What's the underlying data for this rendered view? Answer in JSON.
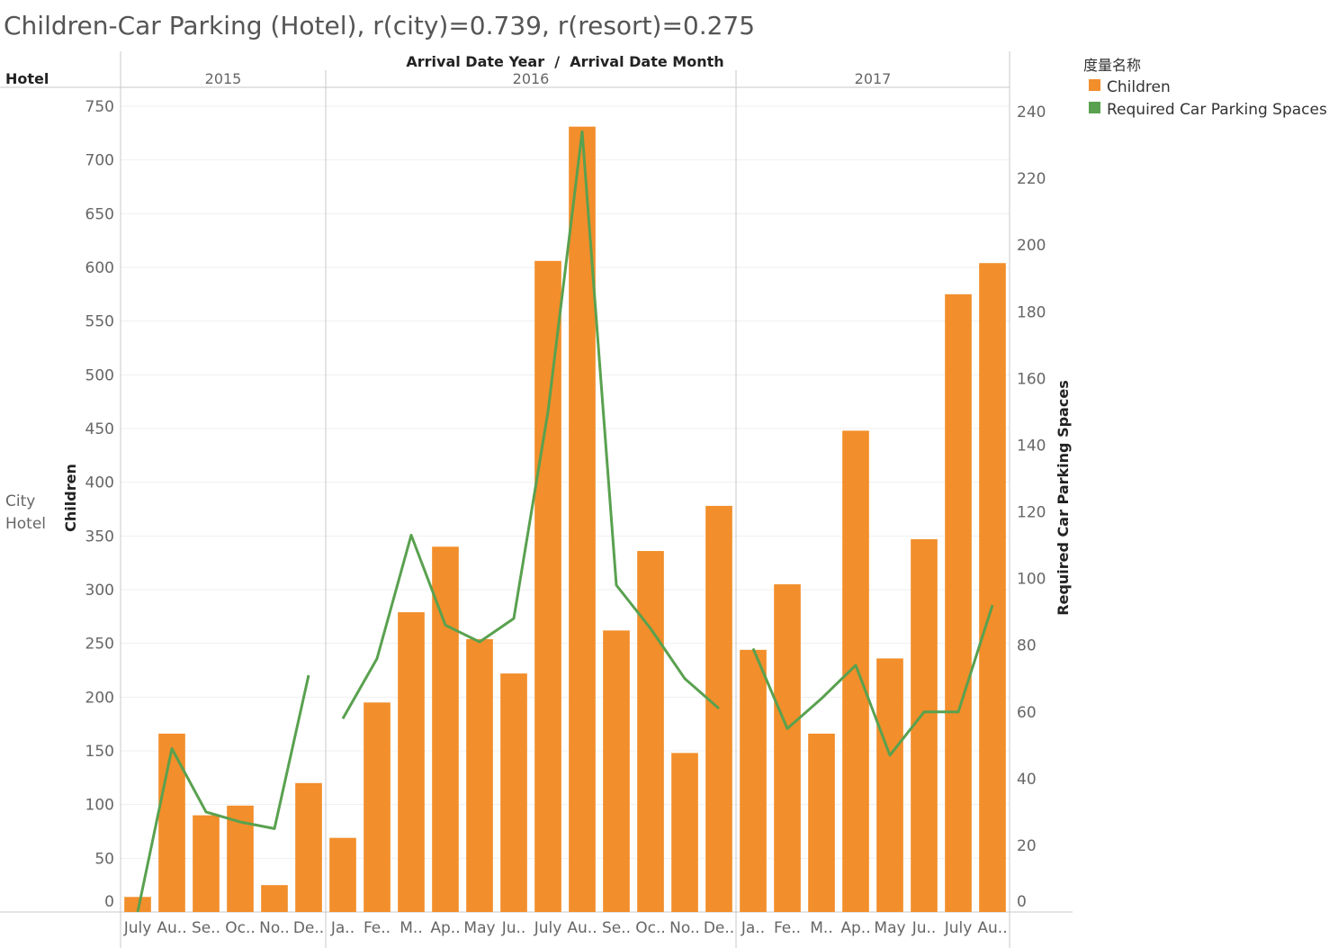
{
  "title": "Children-Car Parking (Hotel), r(city)=0.739, r(resort)=0.275",
  "header": {
    "corner_label": "Hotel",
    "column_header": "Arrival Date Year  /  Arrival Date Month",
    "years": [
      "2015",
      "2016",
      "2017"
    ]
  },
  "row_label_line1": "City",
  "row_label_line2": "Hotel",
  "legend": {
    "title": "度量名称",
    "items": [
      {
        "label": "Children",
        "color": "#f28e2b"
      },
      {
        "label": "Required Car Parking Spaces",
        "color": "#59a14f"
      }
    ]
  },
  "chart_data": {
    "type": "bar",
    "categories": [
      "July",
      "Au..",
      "Se..",
      "Oc..",
      "No..",
      "De..",
      "Ja..",
      "Fe..",
      "M..",
      "Ap..",
      "May",
      "Ju..",
      "July",
      "Au..",
      "Se..",
      "Oc..",
      "No..",
      "De..",
      "Ja..",
      "Fe..",
      "M..",
      "Ap..",
      "May",
      "Ju..",
      "July",
      "Au.."
    ],
    "year_groups": [
      {
        "year": "2015",
        "count": 6
      },
      {
        "year": "2016",
        "count": 12
      },
      {
        "year": "2017",
        "count": 8
      }
    ],
    "series": [
      {
        "name": "Children",
        "type": "bar",
        "axis": "left",
        "color": "#f28e2b",
        "values": [
          14,
          166,
          90,
          99,
          25,
          120,
          69,
          195,
          279,
          340,
          254,
          222,
          606,
          731,
          262,
          336,
          148,
          378,
          244,
          305,
          166,
          448,
          236,
          347,
          575,
          604
        ]
      },
      {
        "name": "Required Car Parking Spaces",
        "type": "line",
        "axis": "right",
        "color": "#59a14f",
        "segments": [
          [
            0,
            49,
            30,
            27,
            25,
            71
          ],
          [
            58,
            76,
            113,
            86,
            81,
            88,
            150,
            234,
            98,
            85,
            70,
            61
          ],
          [
            79,
            55,
            64,
            74,
            47,
            60,
            60,
            92
          ]
        ]
      }
    ],
    "ylabel": "Children",
    "ylabel_right": "Required Car Parking Spaces",
    "ylim": [
      0,
      750
    ],
    "ylim_right": [
      0,
      240
    ],
    "yticks": [
      0,
      50,
      100,
      150,
      200,
      250,
      300,
      350,
      400,
      450,
      500,
      550,
      600,
      650,
      700,
      750
    ],
    "yticks_right": [
      0,
      20,
      40,
      60,
      80,
      100,
      120,
      140,
      160,
      180,
      200,
      220,
      240
    ],
    "grid": true,
    "legend_position": "top-right"
  }
}
